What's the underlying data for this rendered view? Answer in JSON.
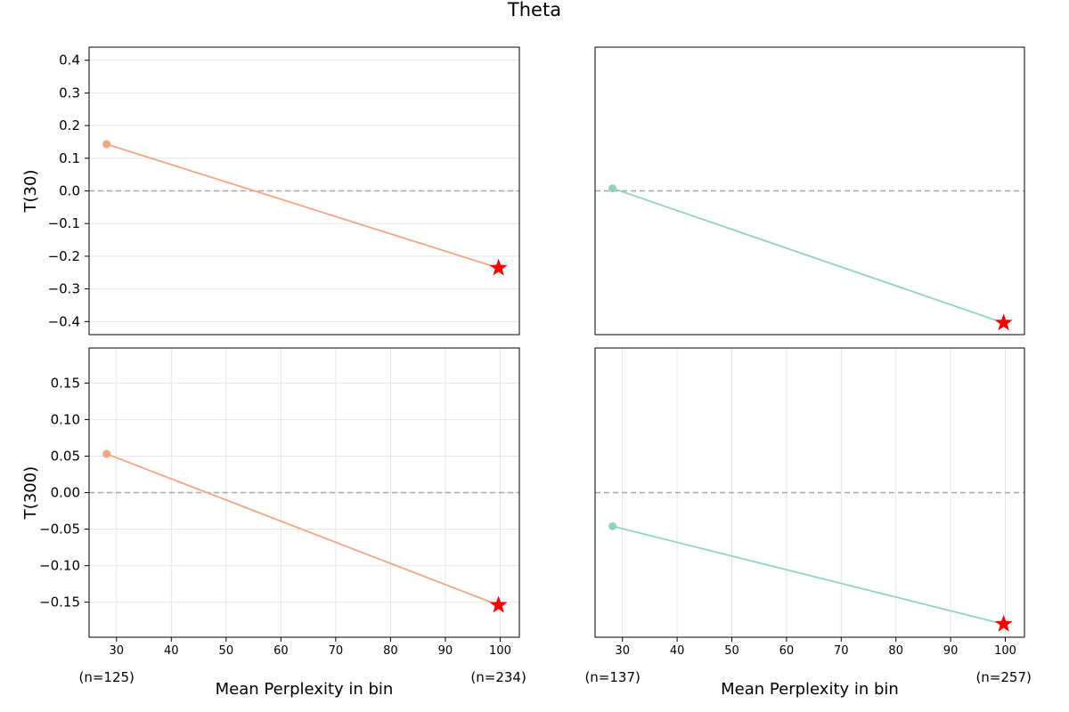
{
  "figure": {
    "title": "Theta"
  },
  "colors": {
    "left_series": "#f4a582",
    "right_series": "#8fd4bd",
    "star": "#ff0000",
    "zero_line": "#a8a8a8",
    "grid": "#e6e6e6"
  },
  "chart_data": [
    {
      "type": "line",
      "panel": "top-left",
      "ylabel": "T(30)",
      "xlabel": "",
      "x": [
        28.2,
        99.7
      ],
      "y": [
        0.143,
        -0.236
      ],
      "xlim": [
        25,
        103.5
      ],
      "ylim": [
        -0.44,
        0.44
      ],
      "yticks": [
        0.4,
        0.3,
        0.2,
        0.1,
        0.0,
        -0.1,
        -0.2,
        -0.3,
        -0.4
      ],
      "ytick_labels": [
        "0.4",
        "0.3",
        "0.2",
        "0.1",
        "0.0",
        "−0.1",
        "−0.2",
        "−0.3",
        "−0.4"
      ],
      "xticks": [],
      "xtick_labels": [],
      "grid": "horizontal",
      "series_color": "left_series",
      "star_on_last_point": true,
      "zero_line": true
    },
    {
      "type": "line",
      "panel": "top-right",
      "ylabel": "",
      "xlabel": "",
      "x": [
        28.2,
        99.7
      ],
      "y": [
        0.008,
        -0.404
      ],
      "xlim": [
        25,
        103.5
      ],
      "ylim": [
        -0.44,
        0.44
      ],
      "yticks": [],
      "ytick_labels": [],
      "xticks": [],
      "xtick_labels": [],
      "grid": "none",
      "series_color": "right_series",
      "star_on_last_point": true,
      "zero_line": true
    },
    {
      "type": "line",
      "panel": "bottom-left",
      "ylabel": "T(300)",
      "xlabel": "Mean Perplexity in bin",
      "x": [
        28.2,
        99.7
      ],
      "y": [
        0.053,
        -0.154
      ],
      "xlim": [
        25,
        103.5
      ],
      "ylim": [
        -0.198,
        0.198
      ],
      "yticks": [
        0.15,
        0.1,
        0.05,
        0.0,
        -0.05,
        -0.1,
        -0.15
      ],
      "ytick_labels": [
        "0.15",
        "0.10",
        "0.05",
        "0.00",
        "−0.05",
        "−0.10",
        "−0.15"
      ],
      "xticks": [
        30,
        40,
        50,
        60,
        70,
        80,
        90,
        100
      ],
      "xtick_labels": [
        "30",
        "40",
        "50",
        "60",
        "70",
        "80",
        "90",
        "100"
      ],
      "n_labels": [
        "(n=125)",
        "(n=234)"
      ],
      "grid": "both",
      "series_color": "left_series",
      "star_on_last_point": true,
      "zero_line": true
    },
    {
      "type": "line",
      "panel": "bottom-right",
      "ylabel": "",
      "xlabel": "Mean Perplexity in bin",
      "x": [
        28.2,
        99.7
      ],
      "y": [
        -0.046,
        -0.18
      ],
      "xlim": [
        25,
        103.5
      ],
      "ylim": [
        -0.198,
        0.198
      ],
      "yticks": [],
      "ytick_labels": [],
      "xticks": [
        30,
        40,
        50,
        60,
        70,
        80,
        90,
        100
      ],
      "xtick_labels": [
        "30",
        "40",
        "50",
        "60",
        "70",
        "80",
        "90",
        "100"
      ],
      "n_labels": [
        "(n=137)",
        "(n=257)"
      ],
      "grid": "vertical",
      "series_color": "right_series",
      "star_on_last_point": true,
      "zero_line": true
    }
  ]
}
